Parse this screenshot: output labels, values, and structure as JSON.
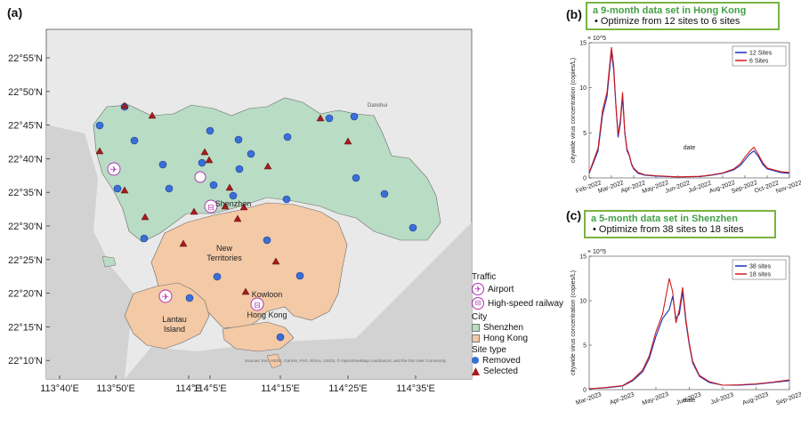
{
  "panel_labels": {
    "a": "(a)",
    "b": "(b)",
    "c": "(c)"
  },
  "map": {
    "lat_labels": [
      "22°55'N",
      "22°50'N",
      "22°45'N",
      "22°40'N",
      "22°35'N",
      "22°30'N",
      "22°25'N",
      "22°20'N",
      "22°15'N",
      "22°10'N"
    ],
    "lon_labels": [
      "113°40'E",
      "113°50'E",
      "114°E",
      "114°5'E",
      "114°15'E",
      "114°25'E",
      "114°35'E"
    ],
    "place_labels": {
      "shenzhen": "Shenzhen",
      "new_territories": "New\nTerritories",
      "kowloon": "Kowloon",
      "hong_kong": "Hong Kong",
      "lantau": "Lantau\nIsland",
      "danshui": "Danshui"
    },
    "attribution": "Sources: Esri, HERE, Garmin, FAO, NOAA, USGS, © OpenStreetMap contributors, and the GIS User Community",
    "legend": {
      "traffic_title": "Traffic",
      "airport": "Airport",
      "railway": "High-speed railway",
      "city_title": "City",
      "shenzhen": "Shenzhen",
      "hong_kong": "Hong Kong",
      "site_title": "Site type",
      "removed": "Removed",
      "selected": "Selected"
    },
    "colors": {
      "shenzhen": "#b9dcc4",
      "hong_kong": "#f3c9a6",
      "removed": "#3a6fd8",
      "selected": "#a51c1c",
      "water": "#d4d4d4",
      "land": "#ececec"
    }
  },
  "panel_b": {
    "box_title": "a 9-month data set in Hong Kong",
    "box_bullet": "•  Optimize from 12 sites to 6 sites"
  },
  "panel_c": {
    "box_title": "a 5-month data set in Shenzhen",
    "box_bullet": "•  Optimize from 38 sites to 18 sites"
  },
  "chart_data": [
    {
      "type": "line",
      "title": "a 9-month data set in Hong Kong",
      "xlabel": "date",
      "ylabel": "citywide virus concentration (copies/L)",
      "y_multiplier": "× 10^5",
      "ylim": [
        0,
        15
      ],
      "yticks": [
        "0",
        "5",
        "10",
        "15"
      ],
      "xticks": [
        "Feb-2022",
        "Mar-2022",
        "Apr-2022",
        "May-2022",
        "Jun-2022",
        "Jul-2022",
        "Aug-2022",
        "Sep-2022",
        "Oct-2022",
        "Nov-2022"
      ],
      "legend_position": "top-right",
      "series": [
        {
          "name": "12 Sites",
          "color": "#1a2fb8",
          "x": [
            0,
            0.4,
            0.6,
            0.8,
            1.0,
            1.1,
            1.2,
            1.3,
            1.4,
            1.5,
            1.6,
            1.7,
            1.8,
            1.9,
            2.0,
            2.2,
            2.5,
            3,
            4,
            5,
            5.5,
            6,
            6.5,
            6.8,
            7.0,
            7.2,
            7.4,
            7.6,
            7.8,
            8.0,
            8.3,
            8.6,
            9.0
          ],
          "values": [
            0.5,
            3,
            7,
            9,
            14,
            12,
            8,
            4.5,
            6,
            9,
            5,
            3,
            2.5,
            1.5,
            1,
            0.5,
            0.3,
            0.2,
            0.1,
            0.15,
            0.3,
            0.5,
            0.9,
            1.4,
            2.0,
            2.6,
            3.0,
            2.4,
            1.5,
            1.0,
            0.8,
            0.6,
            0.5
          ]
        },
        {
          "name": "6 Sites",
          "color": "#d21a1a",
          "x": [
            0,
            0.4,
            0.6,
            0.8,
            1.0,
            1.1,
            1.2,
            1.3,
            1.4,
            1.5,
            1.6,
            1.7,
            1.8,
            1.9,
            2.0,
            2.2,
            2.5,
            3,
            4,
            5,
            5.5,
            6,
            6.5,
            6.8,
            7.0,
            7.2,
            7.4,
            7.6,
            7.8,
            8.0,
            8.3,
            8.6,
            9.0
          ],
          "values": [
            0.6,
            3.3,
            7.5,
            9.5,
            14.5,
            12.5,
            8.2,
            4.8,
            6.4,
            9.5,
            5.2,
            3.2,
            2.6,
            1.6,
            1.1,
            0.6,
            0.35,
            0.25,
            0.12,
            0.18,
            0.35,
            0.55,
            1.0,
            1.6,
            2.3,
            2.9,
            3.4,
            2.6,
            1.7,
            1.1,
            0.9,
            0.7,
            0.6
          ]
        }
      ]
    },
    {
      "type": "line",
      "title": "a 5-month data set in Shenzhen",
      "xlabel": "date",
      "ylabel": "citywide virus concentration (copies/L)",
      "y_multiplier": "× 10^5",
      "ylim": [
        0,
        15
      ],
      "yticks": [
        "0",
        "5",
        "10",
        "15"
      ],
      "xticks": [
        "Mar-2023",
        "Apr-2023",
        "May-2023",
        "Jun-2023",
        "Jul-2023",
        "Aug-2023",
        "Sep-2023"
      ],
      "legend_position": "top-right",
      "series": [
        {
          "name": "38 sites",
          "color": "#1a2fb8",
          "x": [
            0,
            0.5,
            1.0,
            1.3,
            1.6,
            1.8,
            2.0,
            2.2,
            2.4,
            2.5,
            2.6,
            2.7,
            2.8,
            2.9,
            3.0,
            3.1,
            3.3,
            3.6,
            4,
            4.5,
            5,
            5.5,
            6
          ],
          "values": [
            0.1,
            0.2,
            0.4,
            1.0,
            2.0,
            3.5,
            6,
            8,
            9,
            10.5,
            8,
            8.5,
            11,
            7.5,
            5,
            3,
            1.5,
            0.8,
            0.5,
            0.5,
            0.6,
            0.8,
            1.0
          ]
        },
        {
          "name": "18 sites",
          "color": "#d21a1a",
          "x": [
            0,
            0.5,
            1.0,
            1.3,
            1.6,
            1.8,
            2.0,
            2.2,
            2.4,
            2.5,
            2.6,
            2.7,
            2.8,
            2.9,
            3.0,
            3.1,
            3.3,
            3.6,
            4,
            4.5,
            5,
            5.5,
            6
          ],
          "values": [
            0.1,
            0.25,
            0.45,
            1.1,
            2.2,
            3.8,
            6.5,
            8.5,
            12.5,
            11,
            7.5,
            9,
            11.5,
            7.8,
            5.2,
            3.2,
            1.6,
            0.9,
            0.5,
            0.55,
            0.65,
            0.85,
            1.1
          ]
        }
      ]
    }
  ]
}
